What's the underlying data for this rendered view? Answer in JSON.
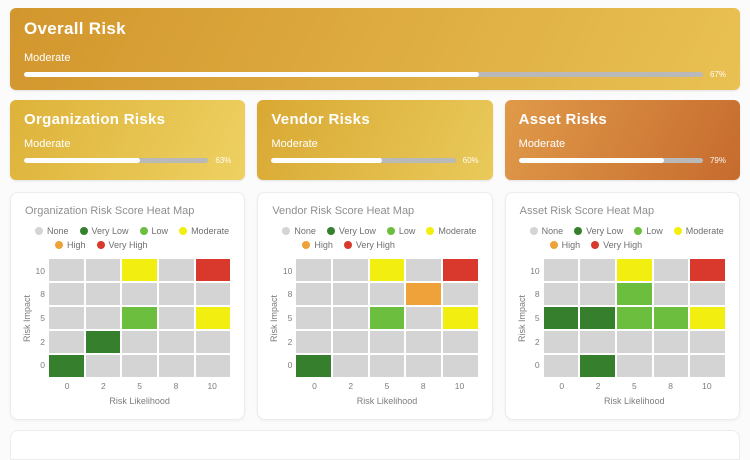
{
  "overall_card": {
    "title": "Overall Risk",
    "status": "Moderate",
    "percent": 67,
    "percent_label": "67%",
    "gradient": {
      "from": "#d2962d",
      "to": "#e9c153"
    }
  },
  "category_cards": [
    {
      "title": "Organization Risks",
      "status": "Moderate",
      "percent": 63,
      "percent_label": "63%",
      "gradient": {
        "from": "#ddb239",
        "to": "#eed162"
      }
    },
    {
      "title": "Vendor Risks",
      "status": "Moderate",
      "percent": 60,
      "percent_label": "60%",
      "gradient": {
        "from": "#d9a833",
        "to": "#e9ca5a"
      }
    },
    {
      "title": "Asset Risks",
      "status": "Moderate",
      "percent": 79,
      "percent_label": "79%",
      "gradient": {
        "from": "#e09a49",
        "to": "#c66b2e"
      }
    }
  ],
  "heat_levels": {
    "none": "#d4d4d4",
    "very_low": "#36802d",
    "low": "#6cbf3e",
    "moderate": "#f2ee10",
    "high": "#efa23a",
    "very_high": "#d8392c"
  },
  "chart_data": [
    {
      "type": "heatmap",
      "title": "Organization Risk Score Heat Map",
      "xlabel": "Risk Likelihood",
      "ylabel": "Risk Impact",
      "x_ticks": [
        "0",
        "2",
        "5",
        "8",
        "10"
      ],
      "y_ticks_top_to_bottom": [
        "10",
        "8",
        "5",
        "2",
        "0"
      ],
      "legend_rows": [
        [
          {
            "label": "None",
            "level": "none"
          },
          {
            "label": "Very Low",
            "level": "very_low"
          },
          {
            "label": "Low",
            "level": "low"
          },
          {
            "label": "Moderate",
            "level": "moderate"
          }
        ],
        [
          {
            "label": "High",
            "level": "high"
          },
          {
            "label": "Very High",
            "level": "very_high"
          }
        ]
      ],
      "rows_top_to_bottom": [
        [
          "none",
          "none",
          "moderate",
          "none",
          "very_high"
        ],
        [
          "none",
          "none",
          "none",
          "none",
          "none"
        ],
        [
          "none",
          "none",
          "low",
          "none",
          "moderate"
        ],
        [
          "none",
          "very_low",
          "none",
          "none",
          "none"
        ],
        [
          "very_low",
          "none",
          "none",
          "none",
          "none"
        ]
      ]
    },
    {
      "type": "heatmap",
      "title": "Vendor Risk Score Heat Map",
      "xlabel": "Risk Likelihood",
      "ylabel": "Risk Impact",
      "x_ticks": [
        "0",
        "2",
        "5",
        "8",
        "10"
      ],
      "y_ticks_top_to_bottom": [
        "10",
        "8",
        "5",
        "2",
        "0"
      ],
      "legend_rows": [
        [
          {
            "label": "None",
            "level": "none"
          },
          {
            "label": "Very Low",
            "level": "very_low"
          },
          {
            "label": "Low",
            "level": "low"
          },
          {
            "label": "Moderate",
            "level": "moderate"
          }
        ],
        [
          {
            "label": "High",
            "level": "high"
          },
          {
            "label": "Very High",
            "level": "very_high"
          }
        ]
      ],
      "rows_top_to_bottom": [
        [
          "none",
          "none",
          "moderate",
          "none",
          "very_high"
        ],
        [
          "none",
          "none",
          "none",
          "high",
          "none"
        ],
        [
          "none",
          "none",
          "low",
          "none",
          "moderate"
        ],
        [
          "none",
          "none",
          "none",
          "none",
          "none"
        ],
        [
          "very_low",
          "none",
          "none",
          "none",
          "none"
        ]
      ]
    },
    {
      "type": "heatmap",
      "title": "Asset Risk Score Heat Map",
      "xlabel": "Risk Likelihood",
      "ylabel": "Risk Impact",
      "x_ticks": [
        "0",
        "2",
        "5",
        "8",
        "10"
      ],
      "y_ticks_top_to_bottom": [
        "10",
        "8",
        "5",
        "2",
        "0"
      ],
      "legend_rows": [
        [
          {
            "label": "None",
            "level": "none"
          },
          {
            "label": "Very Low",
            "level": "very_low"
          },
          {
            "label": "Low",
            "level": "low"
          },
          {
            "label": "Moderate",
            "level": "moderate"
          }
        ],
        [
          {
            "label": "High",
            "level": "high"
          },
          {
            "label": "Very High",
            "level": "very_high"
          }
        ]
      ],
      "rows_top_to_bottom": [
        [
          "none",
          "none",
          "moderate",
          "none",
          "very_high"
        ],
        [
          "none",
          "none",
          "low",
          "none",
          "none"
        ],
        [
          "very_low",
          "very_low",
          "low",
          "low",
          "moderate"
        ],
        [
          "none",
          "none",
          "none",
          "none",
          "none"
        ],
        [
          "none",
          "very_low",
          "none",
          "none",
          "none"
        ]
      ]
    }
  ]
}
